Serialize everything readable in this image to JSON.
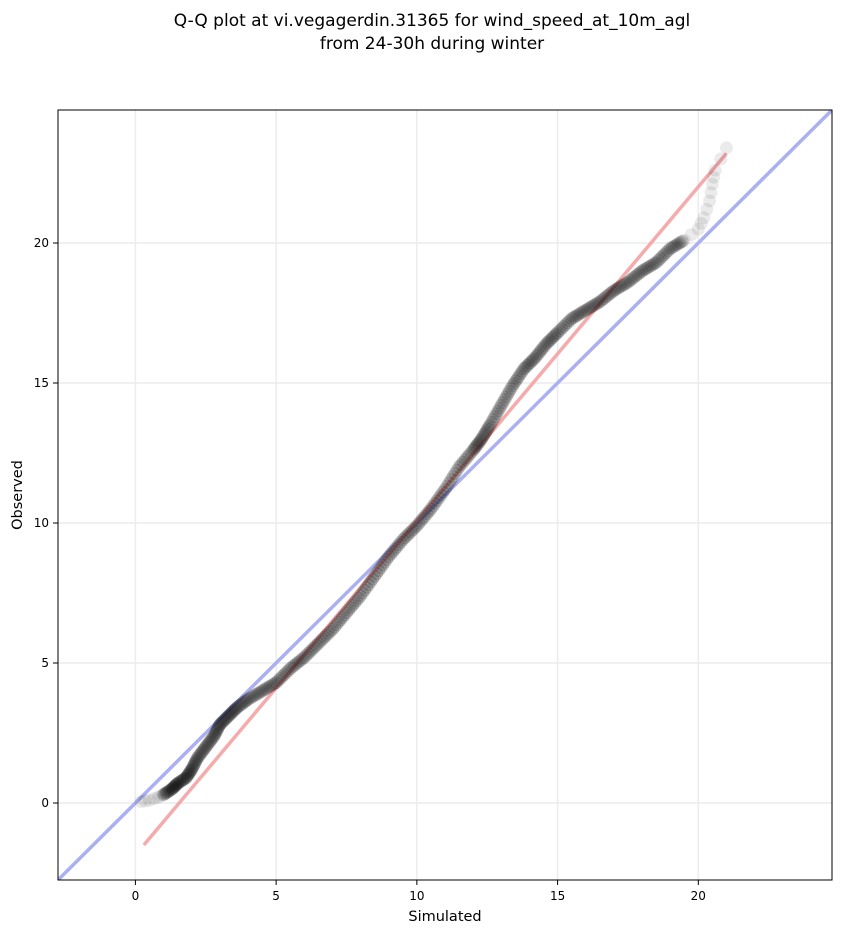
{
  "chart_data": {
    "type": "scatter",
    "title_line1": "Q-Q plot at vi.vegagerdin.31365 for wind_speed_at_10m_agl",
    "title_line2": "from 24-30h during winter",
    "xlabel": "Simulated",
    "ylabel": "Observed",
    "xlim": [
      -2.75,
      24.75
    ],
    "ylim": [
      -2.75,
      24.75
    ],
    "xticks": [
      0,
      5,
      10,
      15,
      20
    ],
    "yticks": [
      0,
      5,
      10,
      15,
      20
    ],
    "grid": true,
    "colors": {
      "points": "#000000",
      "identity_line": "#aab0f0",
      "fit_line": "#f4a7a7",
      "grid": "#ececec"
    },
    "identity_line": {
      "x": [
        -2.75,
        24.75
      ],
      "y": [
        -2.75,
        24.75
      ]
    },
    "fit_line": {
      "x": [
        0.3,
        21.0
      ],
      "y": [
        -1.5,
        23.2
      ]
    },
    "quantiles": {
      "x": [
        0.2,
        0.5,
        0.8,
        1.0,
        1.3,
        1.5,
        1.8,
        2.0,
        2.2,
        2.5,
        2.8,
        3.0,
        3.3,
        3.6,
        4.0,
        4.5,
        5.0,
        5.5,
        6.0,
        6.5,
        7.0,
        7.5,
        8.0,
        8.5,
        9.0,
        9.5,
        10.0,
        10.5,
        11.0,
        11.5,
        12.0,
        12.3,
        12.6,
        13.0,
        13.4,
        13.8,
        14.2,
        14.6,
        15.0,
        15.5,
        16.0,
        16.5,
        17.0,
        17.5,
        18.0,
        18.5,
        19.0,
        19.5,
        20.0,
        20.2,
        20.4,
        20.5,
        20.6,
        21.0
      ],
      "y": [
        0.05,
        0.1,
        0.2,
        0.3,
        0.5,
        0.7,
        0.9,
        1.2,
        1.6,
        2.0,
        2.4,
        2.8,
        3.1,
        3.4,
        3.7,
        4.0,
        4.3,
        4.8,
        5.2,
        5.7,
        6.2,
        6.8,
        7.4,
        8.1,
        8.8,
        9.4,
        9.9,
        10.5,
        11.2,
        12.0,
        12.6,
        13.0,
        13.5,
        14.2,
        14.9,
        15.5,
        15.9,
        16.4,
        16.8,
        17.3,
        17.6,
        17.9,
        18.3,
        18.6,
        19.0,
        19.3,
        19.8,
        20.1,
        20.5,
        20.9,
        21.5,
        22.1,
        22.6,
        23.4
      ]
    }
  }
}
